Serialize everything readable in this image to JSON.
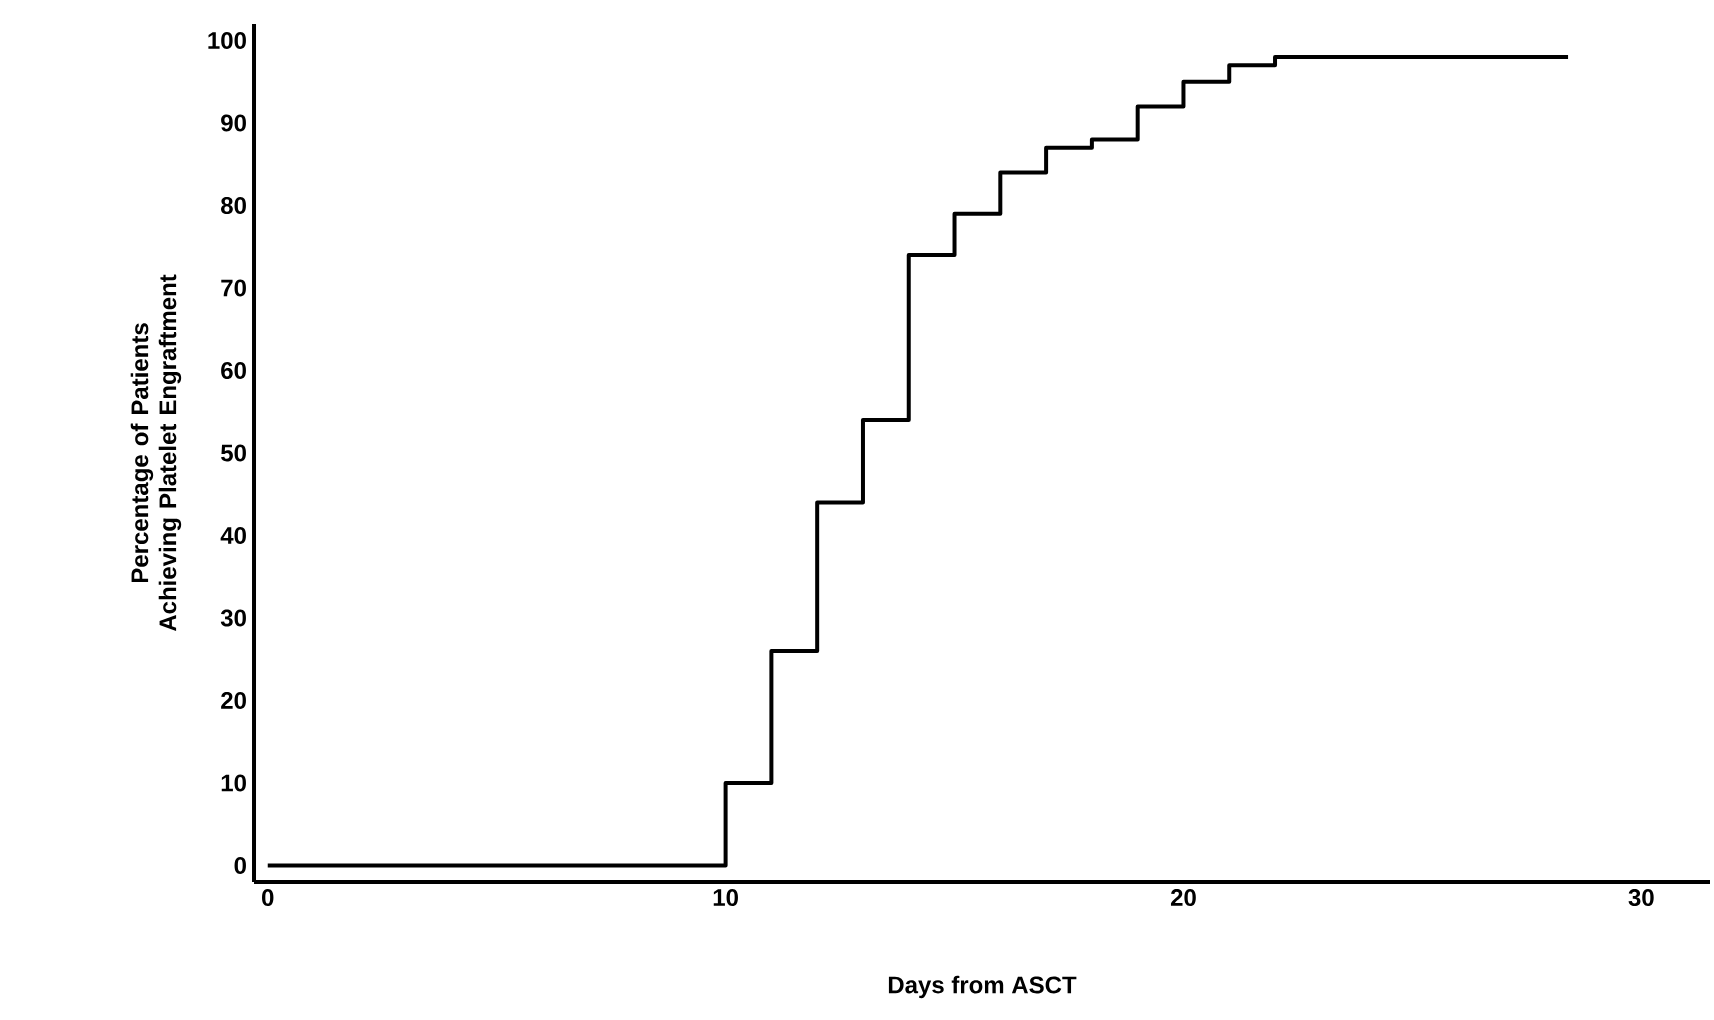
{
  "chart_data": {
    "type": "step",
    "xlabel": "Days from ASCT",
    "ylabel": "Percentage of Patients Achieving Platelet Engraftment",
    "x": [
      0,
      10,
      11,
      12,
      13,
      14,
      15,
      16,
      17,
      18,
      19,
      20,
      21,
      22,
      28.4
    ],
    "values": [
      0,
      10,
      26,
      44,
      54,
      74,
      79,
      84,
      87,
      88,
      92,
      95,
      97,
      98,
      98
    ],
    "color": "#000000",
    "xlim": [
      -0.3,
      31.5
    ],
    "ylim": [
      -2,
      102
    ],
    "xticks": [
      0,
      10,
      20,
      30
    ],
    "yticks": [
      0,
      10,
      20,
      30,
      40,
      50,
      60,
      70,
      80,
      90,
      100
    ],
    "grid": false
  }
}
